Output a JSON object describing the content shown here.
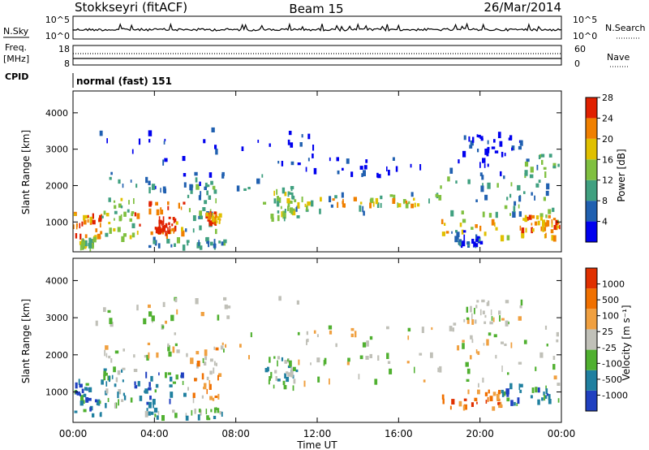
{
  "header": {
    "station": "Stokkseyri (fitACF)",
    "beam": "Beam 15",
    "date": "26/Mar/2014"
  },
  "noise_panel": {
    "left_label": "N.Sky",
    "right_label": "N.Search",
    "left_ticks": [
      "10^5",
      "10^0"
    ],
    "right_ticks": [
      "10^5",
      "10^0"
    ]
  },
  "freq_panel": {
    "left_label_1": "Freq.",
    "left_label_2": "[MHz]",
    "right_label": "Nave",
    "left_ticks": [
      "18",
      "8"
    ],
    "right_ticks": [
      "60",
      "0"
    ]
  },
  "cpid_panel": {
    "label": "CPID",
    "text": "normal (fast) 151"
  },
  "power_panel": {
    "ylabel": "Slant Range [km]",
    "yticks": [
      "1000",
      "2000",
      "3000",
      "4000"
    ],
    "colorbar_label": "Power [dB]",
    "colorbar_ticks": [
      "4",
      "8",
      "12",
      "16",
      "20",
      "24",
      "28"
    ]
  },
  "velocity_panel": {
    "ylabel": "Slant Range [km]",
    "yticks": [
      "1000",
      "2000",
      "3000",
      "4000"
    ],
    "colorbar_label": "Velocity [m s⁻¹]",
    "colorbar_ticks": [
      "1000",
      "500",
      "100",
      "25",
      "-25",
      "-100",
      "-500",
      "-1000"
    ]
  },
  "xaxis": {
    "label": "Time UT",
    "ticks": [
      "00:00",
      "04:00",
      "08:00",
      "12:00",
      "16:00",
      "20:00",
      "00:00"
    ]
  },
  "chart_data": {
    "type": "heatmap",
    "x_range": [
      "00:00",
      "24:00"
    ],
    "y_range_km": [
      180,
      4600
    ],
    "power_colors": [
      "#0000ee",
      "#2060b0",
      "#40a080",
      "#80c040",
      "#e0c000",
      "#f08000",
      "#e02000"
    ],
    "velocity_colors": [
      "#2040c0",
      "#2080a0",
      "#50b030",
      "#c0c0b8",
      "#f0a040",
      "#f07000",
      "#e03000"
    ],
    "power_scale_db": [
      0,
      32
    ],
    "velocity_scale": [
      -1200,
      1200
    ],
    "power_regions": [
      {
        "t0": 0.0,
        "t1": 1.4,
        "r0": 600,
        "r1": 1300,
        "level": 5
      },
      {
        "t0": 0.3,
        "t1": 1.0,
        "r0": 300,
        "r1": 600,
        "level": 3
      },
      {
        "t0": 1.4,
        "t1": 3.0,
        "r0": 600,
        "r1": 1700,
        "level": 3
      },
      {
        "t0": 3.0,
        "t1": 5.5,
        "r0": 700,
        "r1": 1600,
        "level": 5
      },
      {
        "t0": 4.0,
        "t1": 5.0,
        "r0": 800,
        "r1": 1200,
        "level": 6
      },
      {
        "t0": 5.5,
        "t1": 7.0,
        "r0": 800,
        "r1": 2300,
        "level": 2
      },
      {
        "t0": 6.5,
        "t1": 7.2,
        "r0": 1000,
        "r1": 1300,
        "level": 5
      },
      {
        "t0": 1.5,
        "t1": 9.5,
        "r0": 1900,
        "r1": 2400,
        "level": 1
      },
      {
        "t0": 9.3,
        "t1": 11.0,
        "r0": 1100,
        "r1": 2000,
        "level": 3
      },
      {
        "t0": 10.0,
        "t1": 18.0,
        "r0": 1300,
        "r1": 1900,
        "level": 2
      },
      {
        "t0": 11.0,
        "t1": 17.0,
        "r0": 1500,
        "r1": 1700,
        "level": 4
      },
      {
        "t0": 18.0,
        "t1": 22.0,
        "r0": 1200,
        "r1": 2300,
        "level": 2
      },
      {
        "t0": 22.0,
        "t1": 24.0,
        "r0": 1200,
        "r1": 2900,
        "level": 2
      },
      {
        "t0": 18.0,
        "t1": 24.0,
        "r0": 600,
        "r1": 1100,
        "level": 4
      },
      {
        "t0": 22.0,
        "t1": 24.0,
        "r0": 800,
        "r1": 1200,
        "level": 5
      },
      {
        "t0": 3.5,
        "t1": 7.5,
        "r0": 300,
        "r1": 600,
        "level": 2
      },
      {
        "t0": 18.5,
        "t1": 20.0,
        "r0": 400,
        "r1": 800,
        "level": 1
      },
      {
        "t0": 11.0,
        "t1": 21.0,
        "r0": 2300,
        "r1": 2800,
        "level": 0
      },
      {
        "t0": 19.0,
        "t1": 22.0,
        "r0": 2900,
        "r1": 3500,
        "level": 0
      },
      {
        "t0": 1.0,
        "t1": 12.0,
        "r0": 2600,
        "r1": 3600,
        "level": 0
      }
    ],
    "velocity_regions": [
      {
        "t0": 0.0,
        "t1": 1.4,
        "r0": 400,
        "r1": 1400,
        "level": 1
      },
      {
        "t0": 1.4,
        "t1": 3.0,
        "r0": 700,
        "r1": 1700,
        "level": 2
      },
      {
        "t0": 3.0,
        "t1": 5.5,
        "r0": 700,
        "r1": 1600,
        "level": 1
      },
      {
        "t0": 5.5,
        "t1": 7.2,
        "r0": 800,
        "r1": 2200,
        "level": 4
      },
      {
        "t0": 1.5,
        "t1": 9.5,
        "r0": 1900,
        "r1": 2400,
        "level": 3
      },
      {
        "t0": 9.3,
        "t1": 11.0,
        "r0": 1100,
        "r1": 2000,
        "level": 2
      },
      {
        "t0": 10.0,
        "t1": 18.0,
        "r0": 1300,
        "r1": 2100,
        "level": 3
      },
      {
        "t0": 18.0,
        "t1": 24.0,
        "r0": 1200,
        "r1": 2900,
        "level": 3
      },
      {
        "t0": 18.0,
        "t1": 21.0,
        "r0": 500,
        "r1": 1100,
        "level": 5
      },
      {
        "t0": 21.0,
        "t1": 24.0,
        "r0": 700,
        "r1": 1300,
        "level": 1
      },
      {
        "t0": 3.5,
        "t1": 7.5,
        "r0": 300,
        "r1": 600,
        "level": 2
      },
      {
        "t0": 11.0,
        "t1": 21.0,
        "r0": 2300,
        "r1": 2800,
        "level": 3
      },
      {
        "t0": 19.0,
        "t1": 22.0,
        "r0": 2900,
        "r1": 3500,
        "level": 3
      },
      {
        "t0": 1.0,
        "t1": 12.0,
        "r0": 2600,
        "r1": 3600,
        "level": 3
      }
    ]
  }
}
